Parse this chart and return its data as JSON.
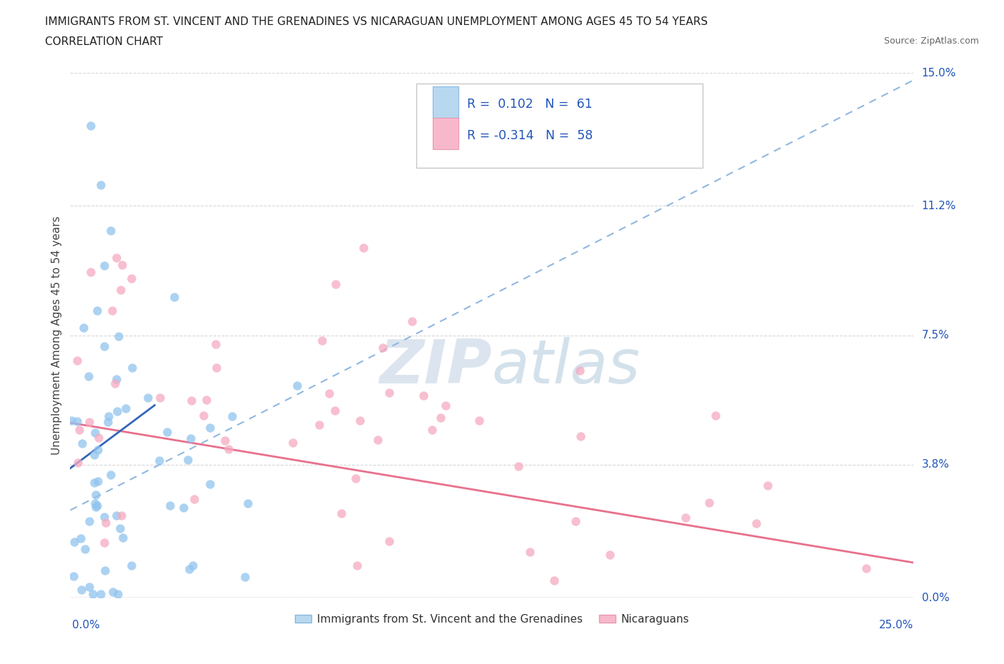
{
  "title_line1": "IMMIGRANTS FROM ST. VINCENT AND THE GRENADINES VS NICARAGUAN UNEMPLOYMENT AMONG AGES 45 TO 54 YEARS",
  "title_line2": "CORRELATION CHART",
  "source": "Source: ZipAtlas.com",
  "ylabel_label": "Unemployment Among Ages 45 to 54 years",
  "legend_label1": "Immigrants from St. Vincent and the Grenadines",
  "legend_label2": "Nicaraguans",
  "r1": "0.102",
  "n1": "61",
  "r2": "-0.314",
  "n2": "58",
  "blue_scatter_color": "#90c4ee",
  "pink_scatter_color": "#f5aabf",
  "blue_trend_dashed_color": "#90b8e0",
  "blue_trend_solid_color": "#3366bb",
  "pink_trend_color": "#e8708c",
  "watermark_color": "#ccdcec",
  "grid_color": "#d8d8d8",
  "xmin": 0.0,
  "xmax": 0.25,
  "ymin": 0.0,
  "ymax": 0.15,
  "ytick_vals": [
    0.0,
    0.038,
    0.075,
    0.112,
    0.15
  ],
  "ytick_labels": [
    "0.0%",
    "3.8%",
    "7.5%",
    "11.2%",
    "15.0%"
  ]
}
